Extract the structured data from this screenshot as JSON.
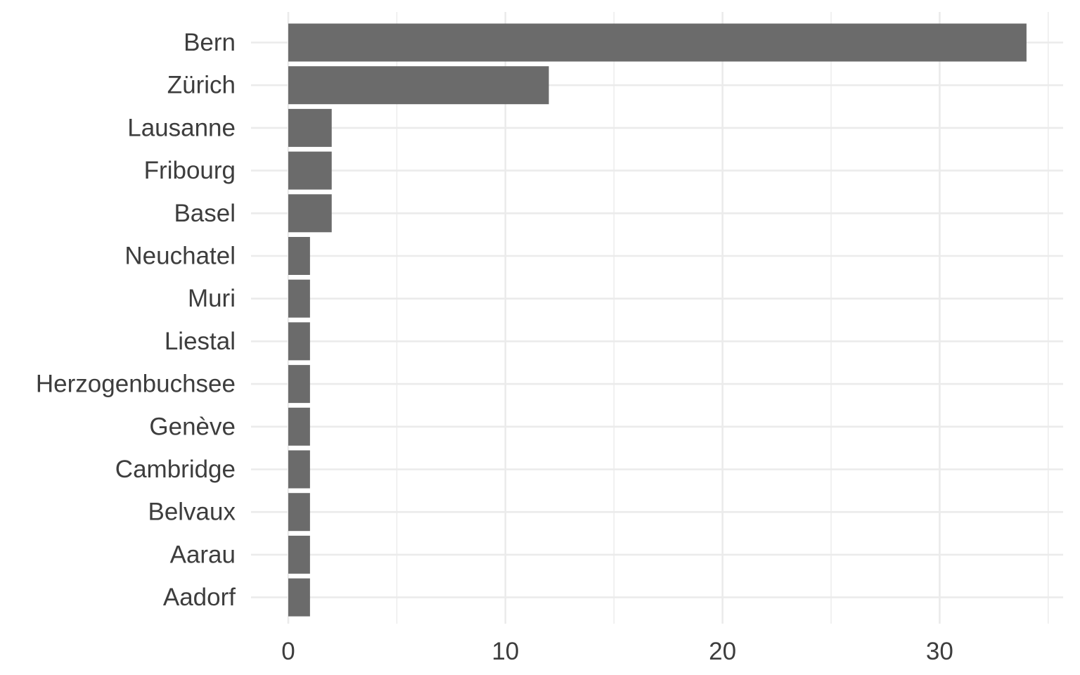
{
  "chart_data": {
    "type": "bar",
    "orientation": "horizontal",
    "title": "",
    "xlabel": "",
    "ylabel": "",
    "categories": [
      "Bern",
      "Zürich",
      "Lausanne",
      "Fribourg",
      "Basel",
      "Neuchatel",
      "Muri",
      "Liestal",
      "Herzogenbuchsee",
      "Genève",
      "Cambridge",
      "Belvaux",
      "Aarau",
      "Aadorf"
    ],
    "values": [
      34,
      12,
      2,
      2,
      2,
      1,
      1,
      1,
      1,
      1,
      1,
      1,
      1,
      1
    ],
    "xlim": [
      0,
      35
    ],
    "x_ticks": [
      0,
      10,
      20,
      30
    ],
    "grid": true,
    "bar_color": "#6b6b6b",
    "grid_color": "#ebebeb",
    "text_color": "#3d3d3d"
  }
}
